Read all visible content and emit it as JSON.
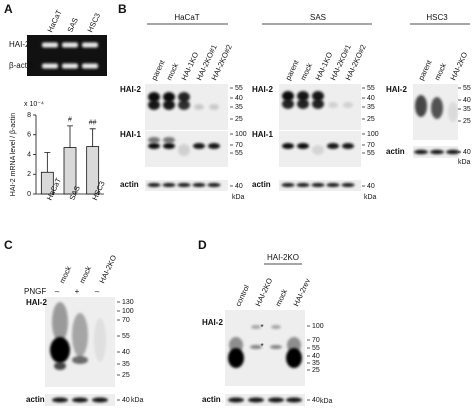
{
  "figure": {
    "panel_labels": [
      "A",
      "B",
      "C",
      "D"
    ],
    "panel_a": {
      "gel_lanes": [
        "HaCaT",
        "SAS",
        "HSC3"
      ],
      "gel_rows": [
        "HAI-2",
        "β-actin"
      ]
    },
    "panel_b": {
      "groups": [
        {
          "title": "HaCaT",
          "lanes": [
            "parent",
            "mock",
            "HAI-1KO",
            "HAI-2KO#1",
            "HAI-2KO#2"
          ],
          "blots": [
            {
              "label": "HAI-2",
              "markers": [
                55,
                40,
                35,
                25
              ]
            },
            {
              "label": "HAI-1",
              "markers": [
                100,
                70,
                55
              ]
            },
            {
              "label": "actin",
              "markers": [
                40
              ]
            }
          ],
          "unit": "kDa"
        },
        {
          "title": "SAS",
          "lanes": [
            "parent",
            "mock",
            "HAI-1KO",
            "HAI-2KO#1",
            "HAI-2KO#2"
          ],
          "blots": [
            {
              "label": "HAI-2",
              "markers": [
                55,
                40,
                35,
                25
              ]
            },
            {
              "label": "HAI-1",
              "markers": [
                100,
                70,
                55
              ]
            },
            {
              "label": "actin",
              "markers": [
                40
              ]
            }
          ],
          "unit": "kDa"
        },
        {
          "title": "HSC3",
          "lanes": [
            "parent",
            "mock",
            "HAI-2KO"
          ],
          "blots": [
            {
              "label": "HAI-2",
              "markers": [
                55,
                40,
                35,
                25
              ]
            },
            {
              "label": "actin",
              "markers": [
                40
              ]
            }
          ],
          "unit": "kDa"
        }
      ]
    },
    "panel_c": {
      "lanes": [
        "mock",
        "mock",
        "HAI-2KO"
      ],
      "treatment": "PNGF",
      "treatment_signs": [
        "–",
        "+",
        "–"
      ],
      "blots": [
        {
          "label": "HAI-2",
          "markers": [
            130,
            100,
            70,
            55,
            40,
            35,
            25
          ]
        },
        {
          "label": "actin",
          "markers": [
            40
          ]
        }
      ],
      "unit": "kDa"
    },
    "panel_d": {
      "header": "HAI-2KO",
      "lanes": [
        "control",
        "HAI-2KO",
        "mock",
        "HAI-2rev"
      ],
      "asterisks": [
        "*",
        "*"
      ],
      "blots": [
        {
          "label": "HAI-2",
          "markers": [
            100,
            70,
            55,
            40,
            35,
            25
          ]
        },
        {
          "label": "actin",
          "markers": [
            40
          ]
        }
      ],
      "unit": "kDa"
    }
  },
  "chart_data": {
    "type": "bar",
    "y_label": "HAI-2 mRNA level / β-actin",
    "scale_label": "x 10⁻⁴",
    "categories": [
      "HaCaT",
      "SAS",
      "HSC3"
    ],
    "values": [
      2.2,
      4.7,
      4.8
    ],
    "errors": [
      2.0,
      2.2,
      1.8
    ],
    "color": "#d9d9d9",
    "ylim": [
      0,
      8
    ],
    "yticks": [
      0,
      2,
      4,
      6,
      8
    ],
    "annotations": [
      {
        "text": "#",
        "category": "SAS"
      },
      {
        "text": "##",
        "category": "HSC3"
      }
    ]
  }
}
